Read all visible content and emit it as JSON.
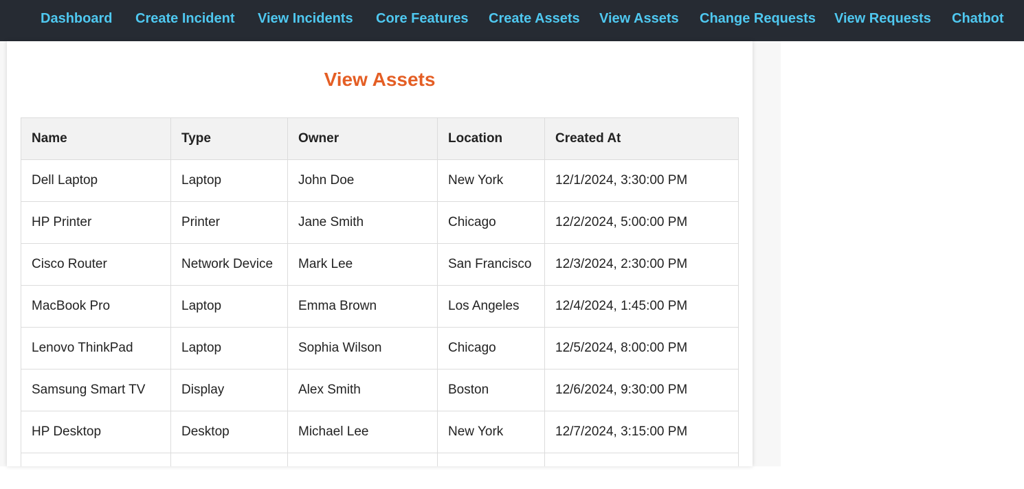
{
  "nav": [
    "Dashboard",
    "Create Incident",
    "View Incidents",
    "Core Features",
    "Create Assets",
    "View Assets",
    "Change Requests",
    "View Requests",
    "Chatbot"
  ],
  "page": {
    "title": "View Assets"
  },
  "table": {
    "headers": [
      "Name",
      "Type",
      "Owner",
      "Location",
      "Created At"
    ],
    "rows": [
      [
        "Dell Laptop",
        "Laptop",
        "John Doe",
        "New York",
        "12/1/2024, 3:30:00 PM"
      ],
      [
        "HP Printer",
        "Printer",
        "Jane Smith",
        "Chicago",
        "12/2/2024, 5:00:00 PM"
      ],
      [
        "Cisco Router",
        "Network Device",
        "Mark Lee",
        "San Francisco",
        "12/3/2024, 2:30:00 PM"
      ],
      [
        "MacBook Pro",
        "Laptop",
        "Emma Brown",
        "Los Angeles",
        "12/4/2024, 1:45:00 PM"
      ],
      [
        "Lenovo ThinkPad",
        "Laptop",
        "Sophia Wilson",
        "Chicago",
        "12/5/2024, 8:00:00 PM"
      ],
      [
        "Samsung Smart TV",
        "Display",
        "Alex Smith",
        "Boston",
        "12/6/2024, 9:30:00 PM"
      ],
      [
        "HP Desktop",
        "Desktop",
        "Michael Lee",
        "New York",
        "12/7/2024, 3:15:00 PM"
      ],
      [
        "",
        "",
        "",
        "",
        ""
      ]
    ]
  }
}
